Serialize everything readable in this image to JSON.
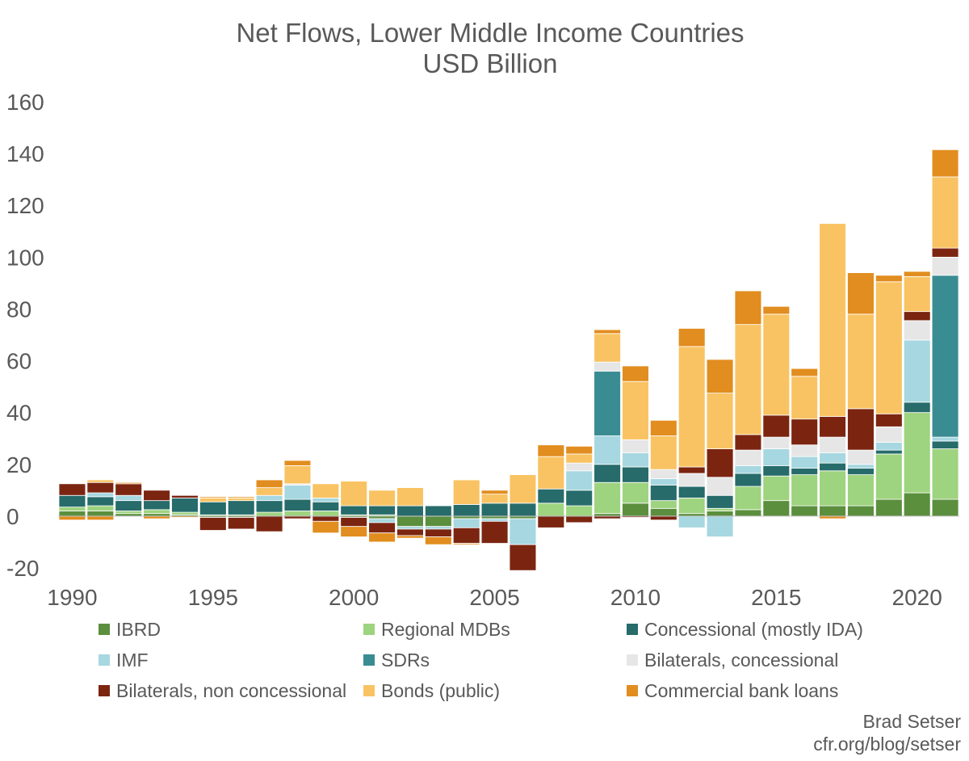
{
  "chart_data": {
    "type": "bar",
    "stacked": true,
    "title": "Net Flows, Lower Middle Income Countries",
    "subtitle": "USD Billion",
    "xlabel": "",
    "ylabel": "",
    "ylim": [
      -20,
      160
    ],
    "yticks": [
      -20,
      0,
      20,
      40,
      60,
      80,
      100,
      120,
      140,
      160
    ],
    "xticks": [
      1990,
      1995,
      2000,
      2005,
      2010,
      2015,
      2020
    ],
    "grid": false,
    "legend_position": "bottom",
    "categories": [
      1990,
      1991,
      1992,
      1993,
      1994,
      1995,
      1996,
      1997,
      1998,
      1999,
      2000,
      2001,
      2002,
      2003,
      2004,
      2005,
      2006,
      2007,
      2008,
      2009,
      2010,
      2011,
      2012,
      2013,
      2014,
      2015,
      2016,
      2017,
      2018,
      2019,
      2020,
      2021
    ],
    "series": [
      {
        "name": "IBRD",
        "color": "#5b8f3e",
        "values": [
          2,
          2,
          1,
          1,
          0.5,
          -0.5,
          -0.5,
          0,
          0,
          0,
          -0.5,
          -1,
          -4,
          -4,
          -1,
          -1,
          -1,
          0,
          0,
          1,
          5,
          3,
          1,
          2,
          2.5,
          6,
          4,
          4,
          4,
          6.5,
          9,
          6.5
        ]
      },
      {
        "name": "Regional MDBs",
        "color": "#9ed37f",
        "values": [
          1.5,
          2,
          1,
          1.5,
          1,
          0.5,
          0.5,
          1.5,
          2,
          2,
          0.5,
          0.5,
          0,
          0,
          0,
          0,
          0,
          5,
          4,
          12,
          8,
          3,
          6,
          1,
          9,
          9.5,
          12,
          13.5,
          12,
          17.5,
          31,
          19.5
        ]
      },
      {
        "name": "Concessional (mostly IDA)",
        "color": "#276b6b",
        "values": [
          4.5,
          3.5,
          4,
          3.5,
          5.5,
          5,
          5.5,
          4.5,
          4.5,
          3.5,
          3.5,
          3.5,
          4,
          4,
          4.5,
          5,
          5,
          5.5,
          6,
          7,
          6,
          6,
          4.5,
          5,
          5,
          4,
          2.5,
          3,
          2.5,
          1.5,
          4,
          3
        ]
      },
      {
        "name": "IMF",
        "color": "#a7d7e0",
        "values": [
          0,
          1.5,
          2,
          0,
          0,
          0,
          0,
          2,
          5.5,
          1.5,
          0,
          -1.5,
          -1,
          -1,
          -3.5,
          -1,
          -10,
          0,
          7.5,
          11,
          5.5,
          2.5,
          -4.5,
          -8,
          3,
          6.5,
          4.5,
          4,
          1.5,
          3,
          24,
          1.5
        ]
      },
      {
        "name": "SDRs",
        "color": "#3a8c93",
        "values": [
          0,
          0,
          0,
          0,
          0,
          0,
          0,
          0,
          0,
          0,
          0,
          0,
          0,
          0,
          0,
          0,
          0,
          0,
          0,
          25,
          0,
          0,
          0,
          0,
          0,
          0,
          0,
          0,
          0,
          0,
          0,
          62.5
        ]
      },
      {
        "name": "Bilaterals, concessional",
        "color": "#e6e6e6",
        "values": [
          0,
          0,
          0,
          0,
          0,
          0,
          0,
          0,
          0.5,
          0,
          0,
          0,
          0,
          0,
          0,
          0,
          0,
          0,
          3,
          3.5,
          5,
          3.5,
          5,
          7,
          6,
          4.5,
          4.5,
          6,
          5.5,
          6,
          7.5,
          7
        ]
      },
      {
        "name": "Bilaterals, non concessional",
        "color": "#7b2511",
        "values": [
          4.5,
          4,
          4.5,
          4,
          1,
          -5,
          -4.5,
          -6,
          -1,
          -2,
          -3.5,
          -4,
          -2.5,
          -3,
          -6,
          -8.5,
          -10,
          -4.5,
          -2.5,
          -1,
          -0.5,
          -1.5,
          2.5,
          11,
          6,
          8.5,
          10,
          8,
          16,
          5,
          3.5,
          3.5
        ]
      },
      {
        "name": "Bonds (public)",
        "color": "#f9c363",
        "values": [
          0,
          1,
          0,
          0,
          0,
          1.5,
          1,
          3,
          7,
          5.5,
          9.5,
          6,
          7,
          0,
          9.5,
          3.5,
          11,
          12.5,
          3.5,
          11,
          22.5,
          13,
          46.5,
          21.5,
          42.5,
          39,
          16.5,
          74.5,
          36.5,
          51,
          13.5,
          27.5
        ]
      },
      {
        "name": "Commercial bank loans",
        "color": "#e28d1f",
        "values": [
          -1.5,
          -1.5,
          0.5,
          -1,
          -0.5,
          0.5,
          0.5,
          3,
          2,
          -4.5,
          -4,
          -3.5,
          -1,
          -3,
          -0.5,
          1.5,
          0,
          4.5,
          3,
          1.5,
          6,
          6,
          7,
          13,
          13,
          3,
          3,
          -1,
          16,
          2.5,
          2,
          10.5
        ]
      }
    ]
  },
  "credit": {
    "line1": "Brad Setser",
    "line2": "cfr.org/blog/setser"
  }
}
